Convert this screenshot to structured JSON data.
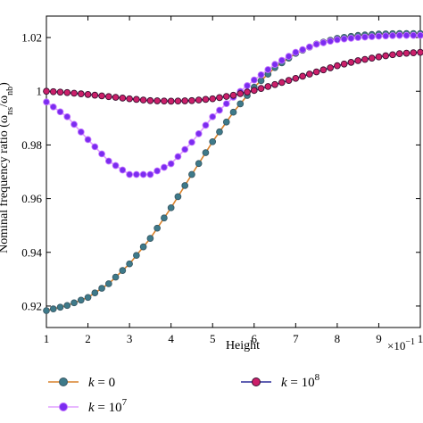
{
  "chart_data": {
    "type": "line",
    "title": "",
    "xlabel": "Height",
    "xscale_label": "×10",
    "xscale_exp": "−1",
    "ylabel": "Nominal frequency ratio (ω",
    "ylabel_sub_num": "ns",
    "ylabel_mid": "/ω",
    "ylabel_sub_den": "nb",
    "ylabel_end": ")",
    "xlim": [
      1,
      10
    ],
    "ylim": [
      0.912,
      1.028
    ],
    "x_ticks": [
      1,
      2,
      3,
      4,
      5,
      6,
      7,
      8,
      9,
      10
    ],
    "x_tick_labels": [
      "1",
      "2",
      "3",
      "4",
      "5",
      "6",
      "7",
      "8",
      "9",
      "1"
    ],
    "y_ticks": [
      0.92,
      0.94,
      0.96,
      0.98,
      1.0,
      1.02
    ],
    "y_tick_labels": [
      "0.92",
      "0.94",
      "0.96",
      "0.98",
      "1",
      "1.02"
    ],
    "grid": false,
    "legend_position": "bottom",
    "series": [
      {
        "name": "k = 0",
        "label_prefix": "k",
        "label_rest": " = 0",
        "label_sup": "",
        "line_color": "#d9822b",
        "marker_fill": "#3e7a8a",
        "marker_stroke": "#3a5a66",
        "points": [
          [
            1.0,
            0.9183
          ],
          [
            1.5,
            0.9202
          ],
          [
            2.0,
            0.9232
          ],
          [
            2.5,
            0.9283
          ],
          [
            3.0,
            0.9357
          ],
          [
            3.5,
            0.9452
          ],
          [
            4.0,
            0.9566
          ],
          [
            4.5,
            0.969
          ],
          [
            5.0,
            0.9812
          ],
          [
            5.5,
            0.9922
          ],
          [
            6.0,
            1.0015
          ],
          [
            6.5,
            1.0088
          ],
          [
            7.0,
            1.0141
          ],
          [
            7.5,
            1.0176
          ],
          [
            8.0,
            1.0197
          ],
          [
            8.5,
            1.0208
          ],
          [
            9.0,
            1.0213
          ],
          [
            9.5,
            1.0215
          ],
          [
            10.0,
            1.0215
          ]
        ]
      },
      {
        "name": "k = 10^7",
        "label_prefix": "k",
        "label_rest": " = 10",
        "label_sup": "7",
        "line_color": "#e0a0ff",
        "marker_fill": "#7b2cf0",
        "marker_stroke": "#c070ff",
        "points": [
          [
            1.0,
            0.996
          ],
          [
            1.5,
            0.9905
          ],
          [
            2.0,
            0.982
          ],
          [
            2.5,
            0.974
          ],
          [
            3.0,
            0.969
          ],
          [
            3.5,
            0.969
          ],
          [
            4.0,
            0.973
          ],
          [
            4.5,
            0.981
          ],
          [
            5.0,
            0.9905
          ],
          [
            5.5,
            0.9978
          ],
          [
            6.0,
            1.0042
          ],
          [
            6.5,
            1.01
          ],
          [
            7.0,
            1.0145
          ],
          [
            7.5,
            1.0175
          ],
          [
            8.0,
            1.0192
          ],
          [
            8.5,
            1.02
          ],
          [
            9.0,
            1.0205
          ],
          [
            9.5,
            1.0208
          ],
          [
            10.0,
            1.0208
          ]
        ]
      },
      {
        "name": "k = 10^8",
        "label_prefix": "k",
        "label_rest": " = 10",
        "label_sup": "8",
        "line_color": "#2d2d9a",
        "marker_fill": "#cc1f6a",
        "marker_stroke": "#3a1030",
        "points": [
          [
            1.0,
            1.0
          ],
          [
            1.5,
            0.9995
          ],
          [
            2.0,
            0.9988
          ],
          [
            2.5,
            0.998
          ],
          [
            3.0,
            0.9972
          ],
          [
            3.5,
            0.9965
          ],
          [
            4.0,
            0.9963
          ],
          [
            4.5,
            0.9965
          ],
          [
            5.0,
            0.9972
          ],
          [
            5.5,
            0.9985
          ],
          [
            6.0,
            1.0003
          ],
          [
            6.5,
            1.0025
          ],
          [
            7.0,
            1.0048
          ],
          [
            7.5,
            1.0072
          ],
          [
            8.0,
            1.0095
          ],
          [
            8.5,
            1.0114
          ],
          [
            9.0,
            1.0128
          ],
          [
            9.5,
            1.014
          ],
          [
            10.0,
            1.0145
          ]
        ]
      }
    ]
  }
}
